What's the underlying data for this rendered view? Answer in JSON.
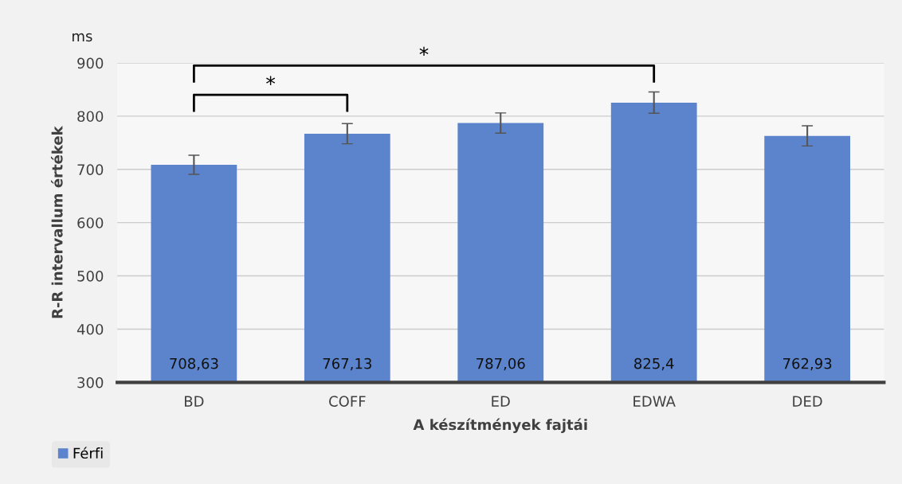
{
  "chart_data": {
    "type": "bar",
    "xlabel": "A készítmények fajtái",
    "ylabel": "R-R intervallum értékek",
    "annotations": [
      "ms",
      "*",
      "*"
    ],
    "categories": [
      "BD",
      "COFF",
      "ED",
      "EDWA",
      "DED"
    ],
    "series": [
      {
        "name": "Férfi",
        "color": "#5b84cc",
        "values": [
          708.63,
          767.13,
          787.06,
          825.4,
          762.93
        ],
        "errors": [
          18,
          19,
          19,
          20,
          19
        ],
        "value_labels": [
          "708,63",
          "767,13",
          "787,06",
          "825,4",
          "762,93"
        ]
      }
    ],
    "ylim": [
      300,
      900
    ],
    "yticks": [
      300,
      400,
      500,
      600,
      700,
      800,
      900
    ],
    "grid": "y",
    "legend": "bottom left"
  }
}
